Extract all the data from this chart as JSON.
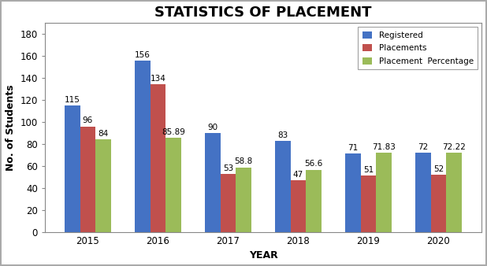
{
  "title": "STATISTICS OF PLACEMENT",
  "xlabel": "YEAR",
  "ylabel": "No. of Students",
  "years": [
    "2015",
    "2016",
    "2017",
    "2018",
    "2019",
    "2020"
  ],
  "registered": [
    115,
    156,
    90,
    83,
    71,
    72
  ],
  "placements": [
    96,
    134,
    53,
    47,
    51,
    52
  ],
  "placement_pct": [
    84,
    85.89,
    58.8,
    56.6,
    71.83,
    72.22
  ],
  "bar_colors": {
    "registered": "#4472C4",
    "placements": "#C0504D",
    "placement_pct": "#9BBB59"
  },
  "legend_labels": [
    "Registered",
    "Placements",
    "Placement  Percentage"
  ],
  "ylim": [
    0,
    190
  ],
  "yticks": [
    0,
    20,
    40,
    60,
    80,
    100,
    120,
    140,
    160,
    180
  ],
  "bar_width": 0.22,
  "background_color": "#FFFFFF",
  "outer_border_color": "#AAAAAA",
  "title_fontsize": 13,
  "label_fontsize": 9,
  "tick_fontsize": 8.5,
  "annotation_fontsize": 7.5
}
